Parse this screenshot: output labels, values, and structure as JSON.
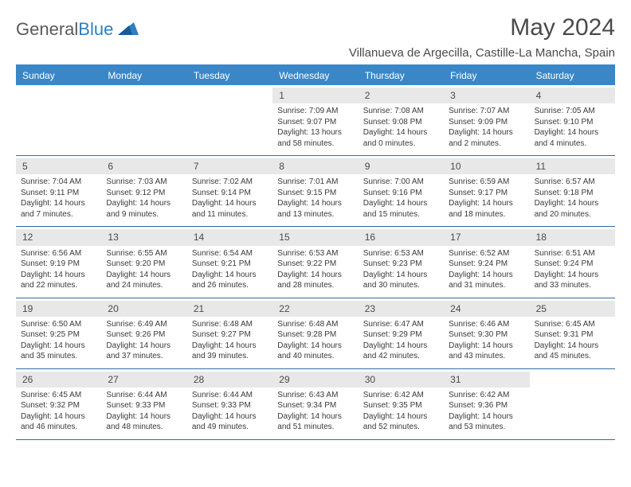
{
  "brand": {
    "word1": "General",
    "word2": "Blue"
  },
  "title": "May 2024",
  "location": "Villanueva de Argecilla, Castille-La Mancha, Spain",
  "colors": {
    "header_bg": "#3a87c8",
    "header_text": "#ffffff",
    "daynum_bg": "#e8e8e8",
    "rule": "#2d6fa8",
    "text": "#3a3a3a",
    "brand_gray": "#5a5a5a",
    "brand_blue": "#2d7fc1"
  },
  "day_names": [
    "Sunday",
    "Monday",
    "Tuesday",
    "Wednesday",
    "Thursday",
    "Friday",
    "Saturday"
  ],
  "weeks": [
    [
      {
        "n": "",
        "sr": "",
        "ss": "",
        "dl1": "",
        "dl2": ""
      },
      {
        "n": "",
        "sr": "",
        "ss": "",
        "dl1": "",
        "dl2": ""
      },
      {
        "n": "",
        "sr": "",
        "ss": "",
        "dl1": "",
        "dl2": ""
      },
      {
        "n": "1",
        "sr": "Sunrise: 7:09 AM",
        "ss": "Sunset: 9:07 PM",
        "dl1": "Daylight: 13 hours",
        "dl2": "and 58 minutes."
      },
      {
        "n": "2",
        "sr": "Sunrise: 7:08 AM",
        "ss": "Sunset: 9:08 PM",
        "dl1": "Daylight: 14 hours",
        "dl2": "and 0 minutes."
      },
      {
        "n": "3",
        "sr": "Sunrise: 7:07 AM",
        "ss": "Sunset: 9:09 PM",
        "dl1": "Daylight: 14 hours",
        "dl2": "and 2 minutes."
      },
      {
        "n": "4",
        "sr": "Sunrise: 7:05 AM",
        "ss": "Sunset: 9:10 PM",
        "dl1": "Daylight: 14 hours",
        "dl2": "and 4 minutes."
      }
    ],
    [
      {
        "n": "5",
        "sr": "Sunrise: 7:04 AM",
        "ss": "Sunset: 9:11 PM",
        "dl1": "Daylight: 14 hours",
        "dl2": "and 7 minutes."
      },
      {
        "n": "6",
        "sr": "Sunrise: 7:03 AM",
        "ss": "Sunset: 9:12 PM",
        "dl1": "Daylight: 14 hours",
        "dl2": "and 9 minutes."
      },
      {
        "n": "7",
        "sr": "Sunrise: 7:02 AM",
        "ss": "Sunset: 9:14 PM",
        "dl1": "Daylight: 14 hours",
        "dl2": "and 11 minutes."
      },
      {
        "n": "8",
        "sr": "Sunrise: 7:01 AM",
        "ss": "Sunset: 9:15 PM",
        "dl1": "Daylight: 14 hours",
        "dl2": "and 13 minutes."
      },
      {
        "n": "9",
        "sr": "Sunrise: 7:00 AM",
        "ss": "Sunset: 9:16 PM",
        "dl1": "Daylight: 14 hours",
        "dl2": "and 15 minutes."
      },
      {
        "n": "10",
        "sr": "Sunrise: 6:59 AM",
        "ss": "Sunset: 9:17 PM",
        "dl1": "Daylight: 14 hours",
        "dl2": "and 18 minutes."
      },
      {
        "n": "11",
        "sr": "Sunrise: 6:57 AM",
        "ss": "Sunset: 9:18 PM",
        "dl1": "Daylight: 14 hours",
        "dl2": "and 20 minutes."
      }
    ],
    [
      {
        "n": "12",
        "sr": "Sunrise: 6:56 AM",
        "ss": "Sunset: 9:19 PM",
        "dl1": "Daylight: 14 hours",
        "dl2": "and 22 minutes."
      },
      {
        "n": "13",
        "sr": "Sunrise: 6:55 AM",
        "ss": "Sunset: 9:20 PM",
        "dl1": "Daylight: 14 hours",
        "dl2": "and 24 minutes."
      },
      {
        "n": "14",
        "sr": "Sunrise: 6:54 AM",
        "ss": "Sunset: 9:21 PM",
        "dl1": "Daylight: 14 hours",
        "dl2": "and 26 minutes."
      },
      {
        "n": "15",
        "sr": "Sunrise: 6:53 AM",
        "ss": "Sunset: 9:22 PM",
        "dl1": "Daylight: 14 hours",
        "dl2": "and 28 minutes."
      },
      {
        "n": "16",
        "sr": "Sunrise: 6:53 AM",
        "ss": "Sunset: 9:23 PM",
        "dl1": "Daylight: 14 hours",
        "dl2": "and 30 minutes."
      },
      {
        "n": "17",
        "sr": "Sunrise: 6:52 AM",
        "ss": "Sunset: 9:24 PM",
        "dl1": "Daylight: 14 hours",
        "dl2": "and 31 minutes."
      },
      {
        "n": "18",
        "sr": "Sunrise: 6:51 AM",
        "ss": "Sunset: 9:24 PM",
        "dl1": "Daylight: 14 hours",
        "dl2": "and 33 minutes."
      }
    ],
    [
      {
        "n": "19",
        "sr": "Sunrise: 6:50 AM",
        "ss": "Sunset: 9:25 PM",
        "dl1": "Daylight: 14 hours",
        "dl2": "and 35 minutes."
      },
      {
        "n": "20",
        "sr": "Sunrise: 6:49 AM",
        "ss": "Sunset: 9:26 PM",
        "dl1": "Daylight: 14 hours",
        "dl2": "and 37 minutes."
      },
      {
        "n": "21",
        "sr": "Sunrise: 6:48 AM",
        "ss": "Sunset: 9:27 PM",
        "dl1": "Daylight: 14 hours",
        "dl2": "and 39 minutes."
      },
      {
        "n": "22",
        "sr": "Sunrise: 6:48 AM",
        "ss": "Sunset: 9:28 PM",
        "dl1": "Daylight: 14 hours",
        "dl2": "and 40 minutes."
      },
      {
        "n": "23",
        "sr": "Sunrise: 6:47 AM",
        "ss": "Sunset: 9:29 PM",
        "dl1": "Daylight: 14 hours",
        "dl2": "and 42 minutes."
      },
      {
        "n": "24",
        "sr": "Sunrise: 6:46 AM",
        "ss": "Sunset: 9:30 PM",
        "dl1": "Daylight: 14 hours",
        "dl2": "and 43 minutes."
      },
      {
        "n": "25",
        "sr": "Sunrise: 6:45 AM",
        "ss": "Sunset: 9:31 PM",
        "dl1": "Daylight: 14 hours",
        "dl2": "and 45 minutes."
      }
    ],
    [
      {
        "n": "26",
        "sr": "Sunrise: 6:45 AM",
        "ss": "Sunset: 9:32 PM",
        "dl1": "Daylight: 14 hours",
        "dl2": "and 46 minutes."
      },
      {
        "n": "27",
        "sr": "Sunrise: 6:44 AM",
        "ss": "Sunset: 9:33 PM",
        "dl1": "Daylight: 14 hours",
        "dl2": "and 48 minutes."
      },
      {
        "n": "28",
        "sr": "Sunrise: 6:44 AM",
        "ss": "Sunset: 9:33 PM",
        "dl1": "Daylight: 14 hours",
        "dl2": "and 49 minutes."
      },
      {
        "n": "29",
        "sr": "Sunrise: 6:43 AM",
        "ss": "Sunset: 9:34 PM",
        "dl1": "Daylight: 14 hours",
        "dl2": "and 51 minutes."
      },
      {
        "n": "30",
        "sr": "Sunrise: 6:42 AM",
        "ss": "Sunset: 9:35 PM",
        "dl1": "Daylight: 14 hours",
        "dl2": "and 52 minutes."
      },
      {
        "n": "31",
        "sr": "Sunrise: 6:42 AM",
        "ss": "Sunset: 9:36 PM",
        "dl1": "Daylight: 14 hours",
        "dl2": "and 53 minutes."
      },
      {
        "n": "",
        "sr": "",
        "ss": "",
        "dl1": "",
        "dl2": ""
      }
    ]
  ]
}
